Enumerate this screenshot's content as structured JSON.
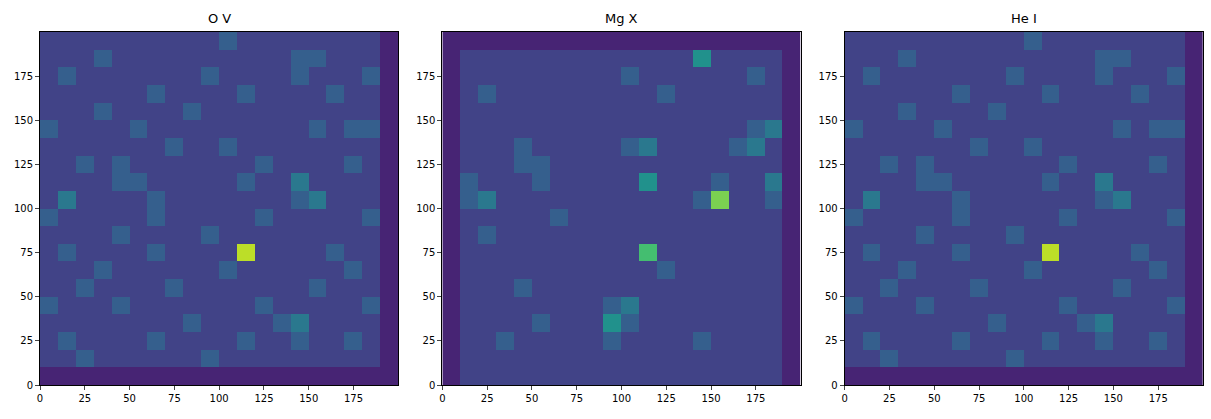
{
  "chart_data": [
    {
      "type": "heatmap",
      "title": "O V",
      "color": "Viridis",
      "x": [
        5,
        15,
        25,
        35,
        45,
        55,
        65,
        75,
        85,
        95,
        105,
        115,
        125,
        135,
        145,
        155,
        165,
        175,
        185,
        195
      ],
      "y": [
        5,
        15,
        25,
        35,
        45,
        55,
        65,
        75,
        85,
        95,
        105,
        115,
        125,
        135,
        145,
        155,
        165,
        175,
        185,
        195
      ],
      "cells": [
        [
          1,
          1,
          1,
          1,
          1,
          1,
          1,
          1,
          1,
          1,
          1,
          1,
          1,
          1,
          1,
          1,
          1,
          1,
          1,
          1
        ],
        [
          2,
          2,
          3,
          2,
          2,
          2,
          2,
          2,
          2,
          3,
          2,
          2,
          2,
          2,
          2,
          2,
          2,
          2,
          2,
          1
        ],
        [
          2,
          3,
          2,
          2,
          2,
          2,
          3,
          2,
          2,
          2,
          2,
          3,
          2,
          2,
          3,
          2,
          2,
          3,
          2,
          1
        ],
        [
          2,
          2,
          2,
          2,
          2,
          2,
          2,
          2,
          3,
          2,
          2,
          2,
          2,
          3,
          4,
          2,
          2,
          2,
          2,
          1
        ],
        [
          3,
          2,
          2,
          2,
          3,
          2,
          2,
          2,
          2,
          2,
          2,
          2,
          3,
          2,
          2,
          2,
          2,
          2,
          3,
          1
        ],
        [
          2,
          2,
          3,
          2,
          2,
          2,
          2,
          3,
          2,
          2,
          2,
          2,
          2,
          2,
          2,
          3,
          2,
          2,
          2,
          1
        ],
        [
          2,
          2,
          2,
          3,
          2,
          2,
          2,
          2,
          2,
          2,
          3,
          2,
          2,
          2,
          2,
          2,
          2,
          3,
          2,
          1
        ],
        [
          2,
          3,
          2,
          2,
          2,
          2,
          3,
          2,
          2,
          2,
          2,
          9,
          2,
          2,
          2,
          2,
          3,
          2,
          2,
          1
        ],
        [
          2,
          2,
          2,
          2,
          3,
          2,
          2,
          2,
          2,
          3,
          2,
          2,
          2,
          2,
          2,
          2,
          2,
          2,
          2,
          1
        ],
        [
          3,
          2,
          2,
          2,
          2,
          2,
          3,
          2,
          2,
          2,
          2,
          2,
          3,
          2,
          2,
          2,
          2,
          2,
          3,
          1
        ],
        [
          2,
          4,
          2,
          2,
          2,
          2,
          3,
          2,
          2,
          2,
          2,
          2,
          2,
          2,
          3,
          4,
          2,
          2,
          2,
          1
        ],
        [
          2,
          2,
          2,
          2,
          3,
          3,
          2,
          2,
          2,
          2,
          2,
          3,
          2,
          2,
          4,
          2,
          2,
          2,
          2,
          1
        ],
        [
          2,
          2,
          3,
          2,
          3,
          2,
          2,
          2,
          2,
          2,
          2,
          2,
          3,
          2,
          2,
          2,
          2,
          3,
          2,
          1
        ],
        [
          2,
          2,
          2,
          2,
          2,
          2,
          2,
          3,
          2,
          2,
          3,
          2,
          2,
          2,
          2,
          2,
          2,
          2,
          2,
          1
        ],
        [
          3,
          2,
          2,
          2,
          2,
          3,
          2,
          2,
          2,
          2,
          2,
          2,
          2,
          2,
          2,
          3,
          2,
          3,
          3,
          1
        ],
        [
          2,
          2,
          2,
          3,
          2,
          2,
          2,
          2,
          3,
          2,
          2,
          2,
          2,
          2,
          2,
          2,
          2,
          2,
          2,
          1
        ],
        [
          2,
          2,
          2,
          2,
          2,
          2,
          3,
          2,
          2,
          2,
          2,
          3,
          2,
          2,
          2,
          2,
          3,
          2,
          2,
          1
        ],
        [
          2,
          3,
          2,
          2,
          2,
          2,
          2,
          2,
          2,
          3,
          2,
          2,
          2,
          2,
          3,
          2,
          2,
          2,
          3,
          1
        ],
        [
          2,
          2,
          2,
          3,
          2,
          2,
          2,
          2,
          2,
          2,
          2,
          2,
          2,
          2,
          3,
          3,
          2,
          2,
          2,
          1
        ],
        [
          2,
          2,
          2,
          2,
          2,
          2,
          2,
          2,
          2,
          2,
          3,
          2,
          2,
          2,
          2,
          2,
          2,
          2,
          2,
          1
        ]
      ],
      "zlim": [
        0,
        10
      ],
      "xlim": [
        0,
        200
      ],
      "ylim": [
        0,
        200
      ],
      "xticks": [
        0,
        25,
        50,
        75,
        100,
        125,
        150,
        175
      ],
      "yticks": [
        0,
        25,
        50,
        75,
        100,
        125,
        150,
        175
      ]
    },
    {
      "type": "heatmap",
      "title": "Mg X",
      "color": "Viridis",
      "x": [
        5,
        15,
        25,
        35,
        45,
        55,
        65,
        75,
        85,
        95,
        105,
        115,
        125,
        135,
        145,
        155,
        165,
        175,
        185,
        195
      ],
      "y": [
        5,
        15,
        25,
        35,
        45,
        55,
        65,
        75,
        85,
        95,
        105,
        115,
        125,
        135,
        145,
        155,
        165,
        175,
        185,
        195
      ],
      "cells": [
        [
          1,
          2,
          2,
          2,
          2,
          2,
          2,
          2,
          2,
          2,
          2,
          2,
          2,
          2,
          2,
          2,
          2,
          2,
          2,
          1
        ],
        [
          1,
          2,
          2,
          2,
          2,
          2,
          2,
          2,
          2,
          2,
          2,
          2,
          2,
          2,
          2,
          2,
          2,
          2,
          2,
          1
        ],
        [
          1,
          2,
          2,
          3,
          2,
          2,
          2,
          2,
          2,
          3,
          2,
          2,
          2,
          2,
          3,
          2,
          2,
          2,
          2,
          1
        ],
        [
          1,
          2,
          2,
          2,
          2,
          3,
          2,
          2,
          2,
          5,
          3,
          2,
          2,
          2,
          2,
          2,
          2,
          2,
          2,
          1
        ],
        [
          1,
          2,
          2,
          2,
          2,
          2,
          2,
          2,
          2,
          3,
          4,
          2,
          2,
          2,
          2,
          2,
          2,
          2,
          2,
          1
        ],
        [
          1,
          2,
          2,
          2,
          3,
          2,
          2,
          2,
          2,
          2,
          2,
          2,
          2,
          2,
          2,
          2,
          2,
          2,
          2,
          1
        ],
        [
          1,
          2,
          2,
          2,
          2,
          2,
          2,
          2,
          2,
          2,
          2,
          2,
          3,
          2,
          2,
          2,
          2,
          2,
          2,
          1
        ],
        [
          1,
          2,
          2,
          2,
          2,
          2,
          2,
          2,
          2,
          2,
          2,
          7,
          2,
          2,
          2,
          2,
          2,
          2,
          2,
          1
        ],
        [
          1,
          2,
          3,
          2,
          2,
          2,
          2,
          2,
          2,
          2,
          2,
          2,
          2,
          2,
          2,
          2,
          2,
          2,
          2,
          1
        ],
        [
          1,
          2,
          2,
          2,
          2,
          2,
          3,
          2,
          2,
          2,
          2,
          2,
          2,
          2,
          2,
          2,
          2,
          2,
          2,
          1
        ],
        [
          1,
          3,
          4,
          2,
          2,
          2,
          2,
          2,
          2,
          2,
          2,
          2,
          2,
          2,
          3,
          8,
          2,
          2,
          3,
          1
        ],
        [
          1,
          3,
          2,
          2,
          2,
          3,
          2,
          2,
          2,
          2,
          2,
          5,
          2,
          2,
          2,
          3,
          2,
          2,
          4,
          1
        ],
        [
          1,
          2,
          2,
          2,
          3,
          3,
          2,
          2,
          2,
          2,
          2,
          2,
          2,
          2,
          2,
          2,
          2,
          2,
          2,
          1
        ],
        [
          1,
          2,
          2,
          2,
          3,
          2,
          2,
          2,
          2,
          2,
          3,
          4,
          2,
          2,
          2,
          2,
          3,
          4,
          2,
          1
        ],
        [
          1,
          2,
          2,
          2,
          2,
          2,
          2,
          2,
          2,
          2,
          2,
          2,
          2,
          2,
          2,
          2,
          2,
          3,
          4,
          1
        ],
        [
          1,
          2,
          2,
          2,
          2,
          2,
          2,
          2,
          2,
          2,
          2,
          2,
          2,
          2,
          2,
          2,
          2,
          2,
          2,
          1
        ],
        [
          1,
          2,
          3,
          2,
          2,
          2,
          2,
          2,
          2,
          2,
          2,
          2,
          3,
          2,
          2,
          2,
          2,
          2,
          2,
          1
        ],
        [
          1,
          2,
          2,
          2,
          2,
          2,
          2,
          2,
          2,
          2,
          3,
          2,
          2,
          2,
          2,
          2,
          2,
          3,
          2,
          1
        ],
        [
          1,
          2,
          2,
          2,
          2,
          2,
          2,
          2,
          2,
          2,
          2,
          2,
          2,
          2,
          5,
          2,
          2,
          2,
          2,
          1
        ],
        [
          1,
          1,
          1,
          1,
          1,
          1,
          1,
          1,
          1,
          1,
          1,
          1,
          1,
          1,
          1,
          1,
          1,
          1,
          1,
          1
        ]
      ],
      "zlim": [
        0,
        10
      ],
      "xlim": [
        0,
        200
      ],
      "ylim": [
        0,
        200
      ],
      "xticks": [
        0,
        25,
        50,
        75,
        100,
        125,
        150,
        175
      ],
      "yticks": [
        0,
        25,
        50,
        75,
        100,
        125,
        150,
        175
      ]
    },
    {
      "type": "heatmap",
      "title": "He I",
      "color": "Viridis",
      "x": [
        5,
        15,
        25,
        35,
        45,
        55,
        65,
        75,
        85,
        95,
        105,
        115,
        125,
        135,
        145,
        155,
        165,
        175,
        185,
        195
      ],
      "y": [
        5,
        15,
        25,
        35,
        45,
        55,
        65,
        75,
        85,
        95,
        105,
        115,
        125,
        135,
        145,
        155,
        165,
        175,
        185,
        195
      ],
      "cells": [
        [
          1,
          1,
          1,
          1,
          1,
          1,
          1,
          1,
          1,
          1,
          1,
          1,
          1,
          1,
          1,
          1,
          1,
          1,
          1,
          1
        ],
        [
          2,
          2,
          3,
          2,
          2,
          2,
          2,
          2,
          2,
          3,
          2,
          2,
          2,
          2,
          2,
          2,
          2,
          2,
          2,
          1
        ],
        [
          2,
          3,
          2,
          2,
          2,
          2,
          3,
          2,
          2,
          2,
          2,
          3,
          2,
          2,
          3,
          2,
          2,
          3,
          2,
          1
        ],
        [
          2,
          2,
          2,
          2,
          2,
          2,
          2,
          2,
          3,
          2,
          2,
          2,
          2,
          3,
          4,
          2,
          2,
          2,
          2,
          1
        ],
        [
          3,
          2,
          2,
          2,
          3,
          2,
          2,
          2,
          2,
          2,
          2,
          2,
          3,
          2,
          2,
          2,
          2,
          2,
          3,
          1
        ],
        [
          2,
          2,
          3,
          2,
          2,
          2,
          2,
          3,
          2,
          2,
          2,
          2,
          2,
          2,
          2,
          3,
          2,
          2,
          2,
          1
        ],
        [
          2,
          2,
          2,
          3,
          2,
          2,
          2,
          2,
          2,
          2,
          3,
          2,
          2,
          2,
          2,
          2,
          2,
          3,
          2,
          1
        ],
        [
          2,
          3,
          2,
          2,
          2,
          2,
          3,
          2,
          2,
          2,
          2,
          9,
          2,
          2,
          2,
          2,
          3,
          2,
          2,
          1
        ],
        [
          2,
          2,
          2,
          2,
          3,
          2,
          2,
          2,
          2,
          3,
          2,
          2,
          2,
          2,
          2,
          2,
          2,
          2,
          2,
          1
        ],
        [
          3,
          2,
          2,
          2,
          2,
          2,
          3,
          2,
          2,
          2,
          2,
          2,
          3,
          2,
          2,
          2,
          2,
          2,
          3,
          1
        ],
        [
          2,
          4,
          2,
          2,
          2,
          2,
          3,
          2,
          2,
          2,
          2,
          2,
          2,
          2,
          3,
          4,
          2,
          2,
          2,
          1
        ],
        [
          2,
          2,
          2,
          2,
          3,
          3,
          2,
          2,
          2,
          2,
          2,
          3,
          2,
          2,
          4,
          2,
          2,
          2,
          2,
          1
        ],
        [
          2,
          2,
          3,
          2,
          3,
          2,
          2,
          2,
          2,
          2,
          2,
          2,
          3,
          2,
          2,
          2,
          2,
          3,
          2,
          1
        ],
        [
          2,
          2,
          2,
          2,
          2,
          2,
          2,
          3,
          2,
          2,
          3,
          2,
          2,
          2,
          2,
          2,
          2,
          2,
          2,
          1
        ],
        [
          3,
          2,
          2,
          2,
          2,
          3,
          2,
          2,
          2,
          2,
          2,
          2,
          2,
          2,
          2,
          3,
          2,
          3,
          3,
          1
        ],
        [
          2,
          2,
          2,
          3,
          2,
          2,
          2,
          2,
          3,
          2,
          2,
          2,
          2,
          2,
          2,
          2,
          2,
          2,
          2,
          1
        ],
        [
          2,
          2,
          2,
          2,
          2,
          2,
          3,
          2,
          2,
          2,
          2,
          3,
          2,
          2,
          2,
          2,
          3,
          2,
          2,
          1
        ],
        [
          2,
          3,
          2,
          2,
          2,
          2,
          2,
          2,
          2,
          3,
          2,
          2,
          2,
          2,
          3,
          2,
          2,
          2,
          3,
          1
        ],
        [
          2,
          2,
          2,
          3,
          2,
          2,
          2,
          2,
          2,
          2,
          2,
          2,
          2,
          2,
          3,
          3,
          2,
          2,
          2,
          1
        ],
        [
          2,
          2,
          2,
          2,
          2,
          2,
          2,
          2,
          2,
          2,
          3,
          2,
          2,
          2,
          2,
          2,
          2,
          2,
          2,
          1
        ]
      ],
      "zlim": [
        0,
        10
      ],
      "xlim": [
        0,
        200
      ],
      "ylim": [
        0,
        200
      ],
      "xticks": [
        0,
        25,
        50,
        75,
        100,
        125,
        150,
        175
      ],
      "yticks": [
        0,
        25,
        50,
        75,
        100,
        125,
        150,
        175
      ]
    }
  ]
}
